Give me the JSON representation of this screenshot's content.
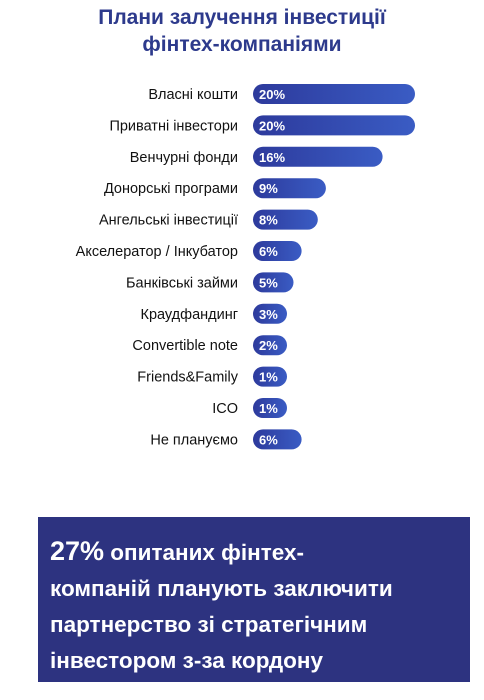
{
  "title": {
    "line1": "Плани залучення інвестиції",
    "line2": "фінтех-компаніями"
  },
  "chart_data": {
    "type": "bar",
    "orientation": "horizontal",
    "title": "Плани залучення інвестиції фінтех-компаніями",
    "categories": [
      "Власні кошти",
      "Приватні інвестори",
      "Венчурні фонди",
      "Донорські програми",
      "Ангельські інвестиції",
      "Акселератор / Інкубатор",
      "Банківські займи",
      "Краудфандинг",
      "Convertible note",
      "Friends&Family",
      "ICO",
      "Не плануємо"
    ],
    "values": [
      20,
      20,
      16,
      9,
      8,
      6,
      5,
      3,
      2,
      1,
      1,
      6
    ],
    "value_labels": [
      "20%",
      "20%",
      "16%",
      "9%",
      "8%",
      "6%",
      "5%",
      "3%",
      "2%",
      "1%",
      "1%",
      "6%"
    ],
    "unit": "%",
    "bar_color": "#2d3a9c",
    "bar_color_light": "#3a5cc4",
    "grid": false,
    "legend": "none"
  },
  "callout": {
    "highlight": "27%",
    "line1_rest": " опитаних фінтех-",
    "line2": "компаній планують заключити",
    "line3": "партнерство зі стратегічним",
    "line4": "інвестором з-за кордону"
  }
}
